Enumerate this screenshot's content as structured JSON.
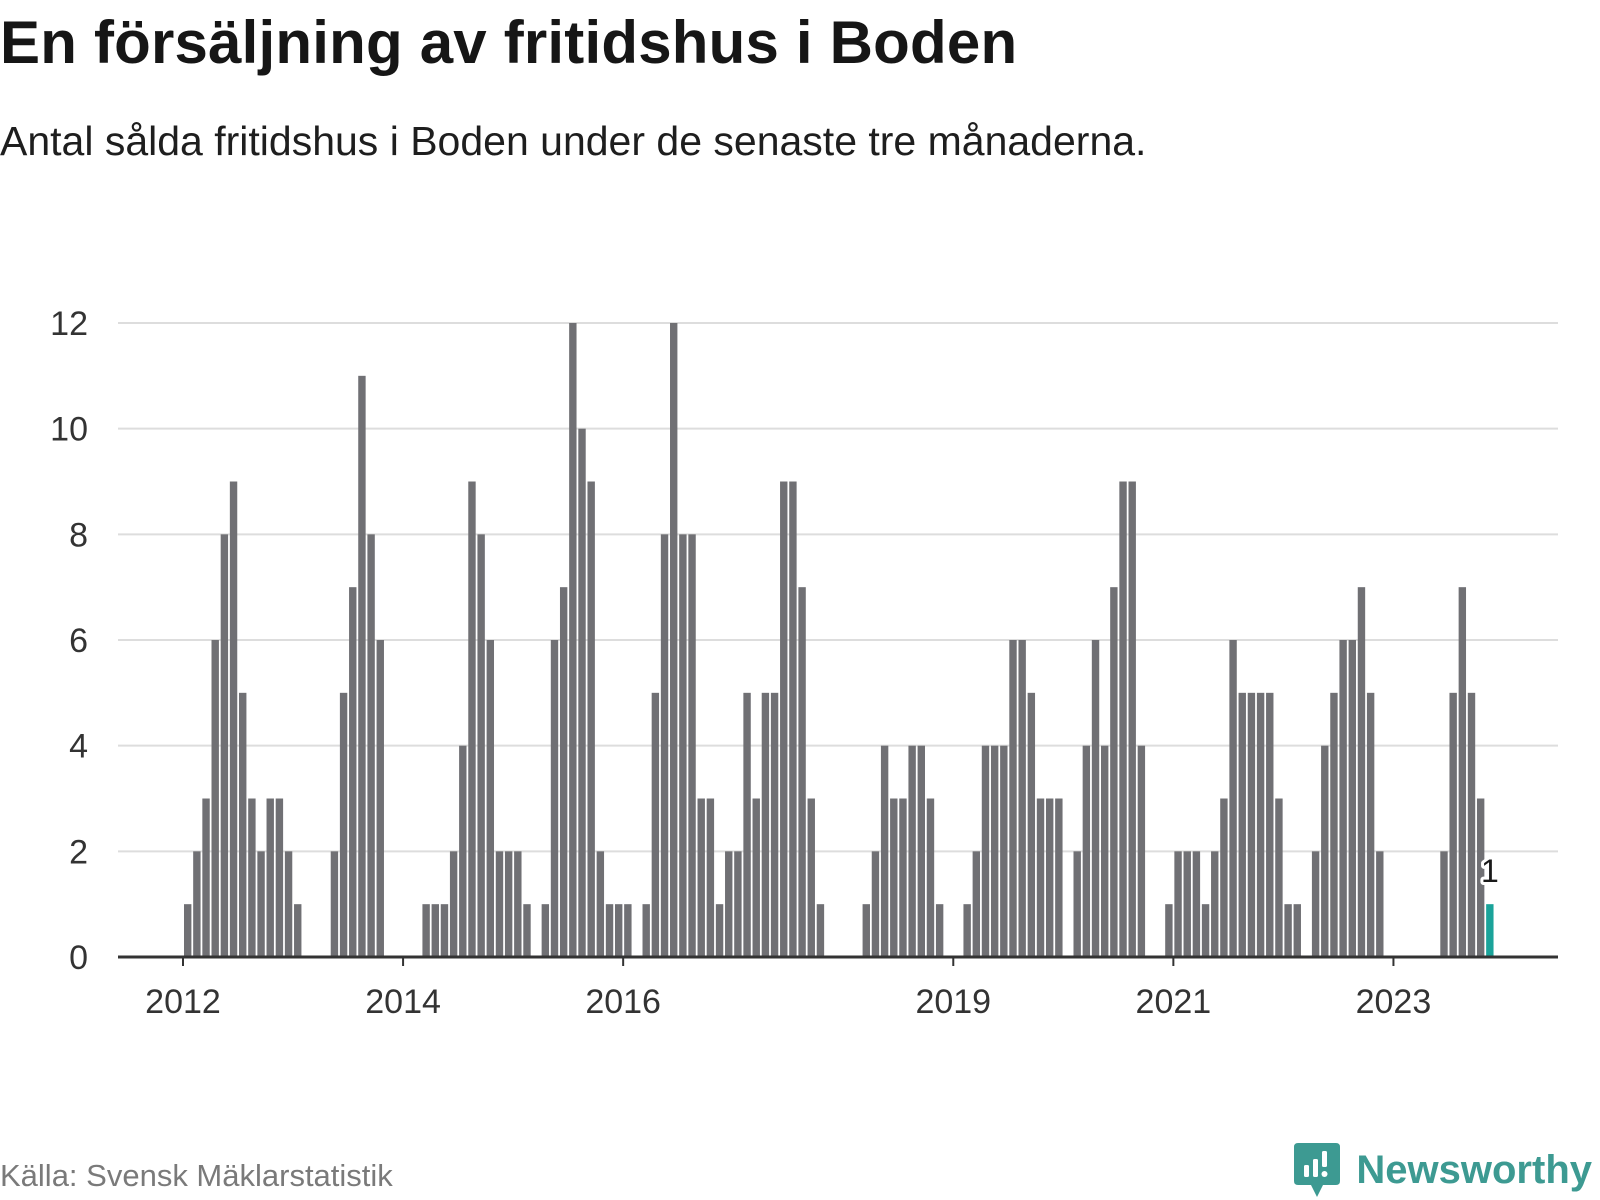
{
  "title": "En försäljning av fritidshus i Boden",
  "subtitle": "Antal sålda fritidshus i Boden under de senaste tre månaderna.",
  "source": "Källa: Svensk Mäklarstatistik",
  "brand": {
    "name": "Newsworthy",
    "icon": "newsworthy-logo-icon",
    "color": "#3d9a92"
  },
  "colors": {
    "bar": "#707074",
    "highlight": "#1aa39a",
    "grid": "#dddddd",
    "axis": "#333333"
  },
  "chart_data": {
    "type": "bar",
    "title": "En försäljning av fritidshus i Boden",
    "xlabel": "",
    "ylabel": "",
    "ylim": [
      0,
      12
    ],
    "yticks": [
      0,
      2,
      4,
      6,
      8,
      10,
      12
    ],
    "grid": true,
    "legend": "none",
    "x_tick_labels": [
      {
        "label": "2012",
        "month_index": 0
      },
      {
        "label": "2014",
        "month_index": 24
      },
      {
        "label": "2016",
        "month_index": 48
      },
      {
        "label": "2019",
        "month_index": 84
      },
      {
        "label": "2021",
        "month_index": 108
      },
      {
        "label": "2023",
        "month_index": 132
      }
    ],
    "start": "2012-01",
    "values": [
      1,
      2,
      3,
      6,
      8,
      9,
      5,
      3,
      2,
      3,
      3,
      2,
      1,
      0,
      0,
      0,
      2,
      5,
      7,
      11,
      8,
      6,
      0,
      0,
      0,
      0,
      1,
      1,
      1,
      2,
      4,
      9,
      8,
      6,
      2,
      2,
      2,
      1,
      0,
      1,
      6,
      7,
      12,
      10,
      9,
      2,
      1,
      1,
      1,
      0,
      1,
      5,
      8,
      12,
      8,
      8,
      3,
      3,
      1,
      2,
      2,
      5,
      3,
      5,
      5,
      9,
      9,
      7,
      3,
      1,
      0,
      0,
      0,
      0,
      1,
      2,
      4,
      3,
      3,
      4,
      4,
      3,
      1,
      0,
      0,
      1,
      2,
      4,
      4,
      4,
      6,
      6,
      5,
      3,
      3,
      3,
      0,
      2,
      4,
      6,
      4,
      7,
      9,
      9,
      4,
      0,
      0,
      1,
      2,
      2,
      2,
      1,
      2,
      3,
      6,
      5,
      5,
      5,
      5,
      3,
      1,
      1,
      0,
      2,
      4,
      5,
      6,
      6,
      7,
      5,
      2,
      0,
      0,
      0,
      0,
      0,
      0,
      2,
      5,
      7,
      5,
      3,
      1
    ],
    "highlight_index": 142,
    "annotations": [
      {
        "index": 142,
        "text": "1"
      }
    ]
  }
}
